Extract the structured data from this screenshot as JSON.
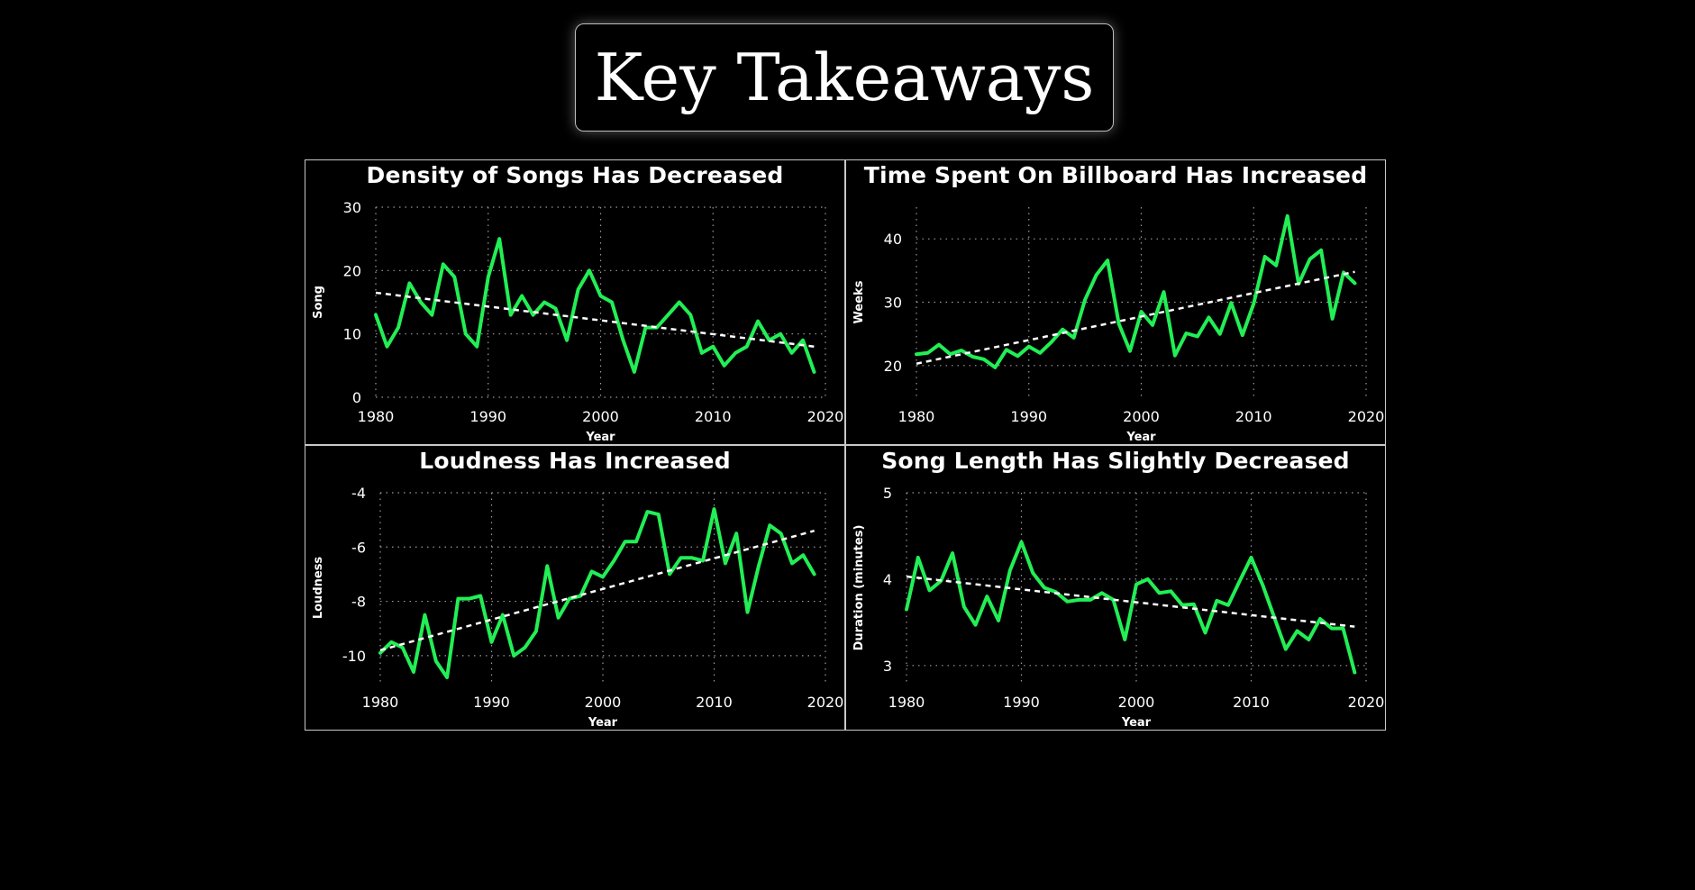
{
  "header": {
    "title": "Key Takeaways"
  },
  "colors": {
    "background": "#000000",
    "series": "#22ee55",
    "trend": "#ffffff",
    "border": "#c8c8c8"
  },
  "chart_data": [
    {
      "type": "line",
      "title": "Density of Songs Has Decreased",
      "xlabel": "Year",
      "ylabel": "Song",
      "xlim": [
        1980,
        2020
      ],
      "ylim": [
        0,
        30
      ],
      "xticks": [
        1980,
        1990,
        2000,
        2010,
        2020
      ],
      "yticks": [
        0,
        10,
        20,
        30
      ],
      "x": [
        1980,
        1981,
        1982,
        1983,
        1984,
        1985,
        1986,
        1987,
        1988,
        1989,
        1990,
        1991,
        1992,
        1993,
        1994,
        1995,
        1996,
        1997,
        1998,
        1999,
        2000,
        2001,
        2002,
        2003,
        2004,
        2005,
        2006,
        2007,
        2008,
        2009,
        2010,
        2011,
        2012,
        2013,
        2014,
        2015,
        2016,
        2017,
        2018,
        2019
      ],
      "values": [
        13,
        8,
        11,
        18,
        15,
        13,
        21,
        19,
        10,
        8,
        19,
        25,
        13,
        16,
        13,
        15,
        14,
        9,
        17,
        20,
        16,
        15,
        9,
        4,
        11,
        11,
        13,
        15,
        13,
        7,
        8,
        5,
        7,
        8,
        12,
        9,
        10,
        7,
        9,
        4
      ],
      "trend": [
        16.5,
        8.0
      ]
    },
    {
      "type": "line",
      "title": "Time Spent On Billboard Has Increased",
      "xlabel": "Year",
      "ylabel": "Weeks",
      "xlim": [
        1980,
        2020
      ],
      "ylim": [
        15,
        45
      ],
      "xticks": [
        1980,
        1990,
        2000,
        2010,
        2020
      ],
      "yticks": [
        20,
        30,
        40
      ],
      "x": [
        1980,
        1981,
        1982,
        1983,
        1984,
        1985,
        1986,
        1987,
        1988,
        1989,
        1990,
        1991,
        1992,
        1993,
        1994,
        1995,
        1996,
        1997,
        1998,
        1999,
        2000,
        2001,
        2002,
        2003,
        2004,
        2005,
        2006,
        2007,
        2008,
        2009,
        2010,
        2011,
        2012,
        2013,
        2014,
        2015,
        2016,
        2017,
        2018,
        2019
      ],
      "values": [
        21.8,
        22.0,
        23.3,
        21.8,
        22.4,
        21.4,
        21.0,
        19.7,
        22.5,
        21.5,
        23.0,
        22.0,
        23.7,
        25.7,
        24.4,
        30.4,
        34.3,
        36.6,
        26.6,
        22.3,
        28.5,
        26.4,
        31.6,
        21.6,
        25.1,
        24.6,
        27.6,
        25.0,
        29.9,
        24.8,
        29.8,
        37.2,
        35.8,
        43.6,
        32.9,
        36.8,
        38.2,
        27.4,
        34.7,
        33.0
      ],
      "trend": [
        20.3,
        34.8
      ]
    },
    {
      "type": "line",
      "title": "Loudness Has Increased",
      "xlabel": "Year",
      "ylabel": "Loudness",
      "xlim": [
        1980,
        2020
      ],
      "ylim": [
        -11,
        -4
      ],
      "xticks": [
        1980,
        1990,
        2000,
        2010,
        2020
      ],
      "yticks": [
        -10,
        -8,
        -6,
        -4
      ],
      "x": [
        1980,
        1981,
        1982,
        1983,
        1984,
        1985,
        1986,
        1987,
        1988,
        1989,
        1990,
        1991,
        1992,
        1993,
        1994,
        1995,
        1996,
        1997,
        1998,
        1999,
        2000,
        2001,
        2002,
        2003,
        2004,
        2005,
        2006,
        2007,
        2008,
        2009,
        2010,
        2011,
        2012,
        2013,
        2014,
        2015,
        2016,
        2017,
        2018,
        2019
      ],
      "values": [
        -9.9,
        -9.5,
        -9.7,
        -10.6,
        -8.5,
        -10.2,
        -10.8,
        -7.9,
        -7.9,
        -7.8,
        -9.5,
        -8.5,
        -10.0,
        -9.7,
        -9.1,
        -6.7,
        -8.6,
        -7.9,
        -7.8,
        -6.9,
        -7.1,
        -6.5,
        -5.8,
        -5.8,
        -4.7,
        -4.8,
        -7.0,
        -6.4,
        -6.4,
        -6.5,
        -4.6,
        -6.6,
        -5.5,
        -8.4,
        -6.7,
        -5.2,
        -5.5,
        -6.6,
        -6.3,
        -7.0
      ],
      "trend": [
        -9.8,
        -5.4
      ]
    },
    {
      "type": "line",
      "title": "Song Length Has Slightly Decreased",
      "xlabel": "Year",
      "ylabel": "Duration (minutes)",
      "xlim": [
        1980,
        2020
      ],
      "ylim": [
        2.8,
        5
      ],
      "xticks": [
        1980,
        1990,
        2000,
        2010,
        2020
      ],
      "yticks": [
        3,
        4,
        5
      ],
      "x": [
        1980,
        1981,
        1982,
        1983,
        1984,
        1985,
        1986,
        1987,
        1988,
        1989,
        1990,
        1991,
        1992,
        1993,
        1994,
        1995,
        1996,
        1997,
        1998,
        1999,
        2000,
        2001,
        2002,
        2003,
        2004,
        2005,
        2006,
        2007,
        2008,
        2009,
        2010,
        2011,
        2012,
        2013,
        2014,
        2015,
        2016,
        2017,
        2018,
        2019
      ],
      "values": [
        3.65,
        4.25,
        3.87,
        3.98,
        4.3,
        3.68,
        3.47,
        3.8,
        3.52,
        4.1,
        4.43,
        4.07,
        3.9,
        3.85,
        3.74,
        3.76,
        3.76,
        3.84,
        3.76,
        3.3,
        3.94,
        4.0,
        3.84,
        3.86,
        3.7,
        3.71,
        3.38,
        3.75,
        3.7,
        3.98,
        4.25,
        3.93,
        3.56,
        3.19,
        3.4,
        3.3,
        3.54,
        3.43,
        3.43,
        2.92
      ],
      "trend": [
        4.03,
        3.45
      ]
    }
  ]
}
